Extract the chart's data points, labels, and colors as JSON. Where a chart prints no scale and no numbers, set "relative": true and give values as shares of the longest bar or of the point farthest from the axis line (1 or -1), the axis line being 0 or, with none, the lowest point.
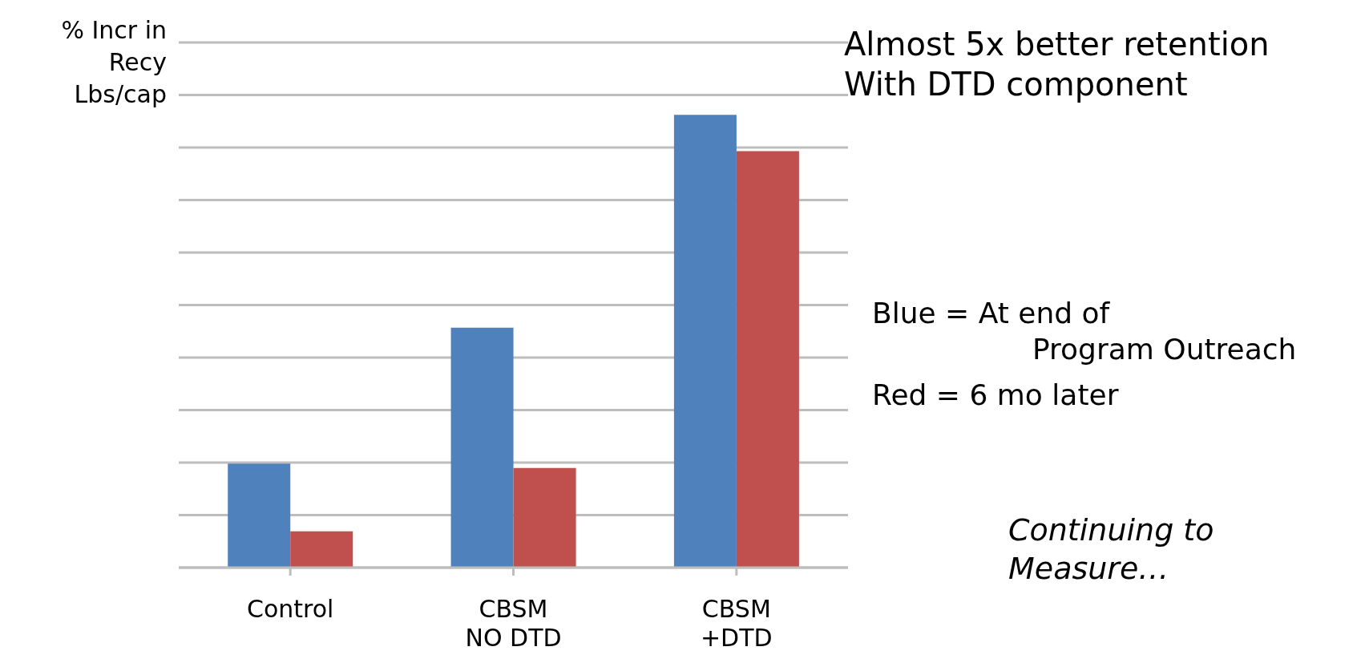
{
  "chart_data": {
    "type": "bar",
    "relative": true,
    "ylabel": "% Incr in\nRecy\nLbs/cap",
    "categories": [
      "Control",
      "CBSM\nNO DTD",
      "CBSM\n+DTD"
    ],
    "series": [
      {
        "color": "#4f81bd",
        "values": [
          0.23,
          0.53,
          1
        ]
      },
      {
        "color": "#c0504d",
        "values": [
          0.08,
          0.22,
          0.92
        ]
      }
    ],
    "grid": "y",
    "annotations": [
      "Almost 5x better retention\nWith DTD component",
      "Blue = At end of\nProgram Outreach",
      "Red = 6 mo later",
      "Continuing to\nMeasure…"
    ]
  }
}
